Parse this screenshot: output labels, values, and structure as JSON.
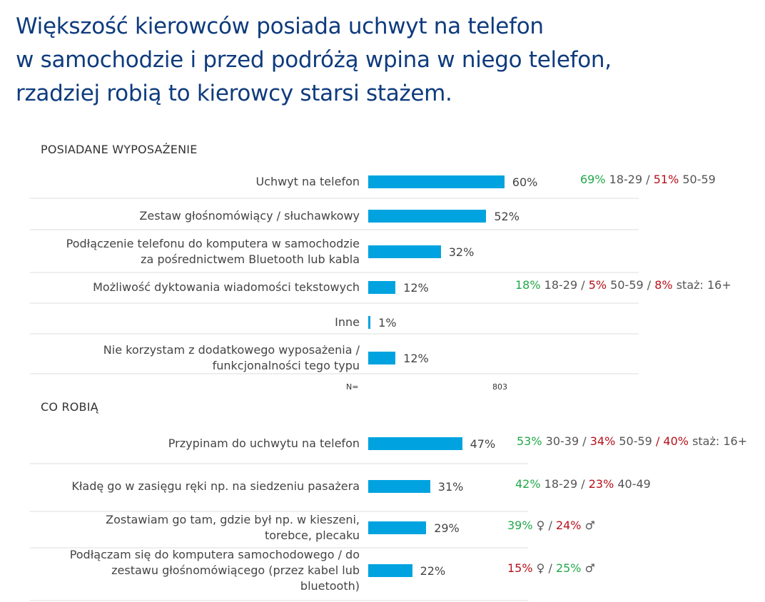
{
  "title_lines": [
    "Większość kierowców posiada uchwyt na telefon",
    "w samochodzie i przed podróżą wpina w niego telefon,",
    "rzadziej robią to kierowcy starsi stażem."
  ],
  "colors": {
    "bar": "#00a3e0",
    "title": "#0e3b7d",
    "green": "#22a84a",
    "red": "#b5121b",
    "gray": "#555555"
  },
  "chart_data": [
    {
      "type": "bar",
      "orientation": "horizontal",
      "title": "POSIADANE WYPOSAŻENIE",
      "n_label": "N=",
      "n_value": "803",
      "categories": [
        "Uchwyt na telefon",
        "Zestaw głośnomówiący / słuchawkowy",
        "Podłączenie telefonu do komputera w samochodzie\nza pośrednictwem Bluetooth lub kabla",
        "Możliwość dyktowania wiadomości tekstowych",
        "Inne",
        "Nie korzystam z dodatkowego wyposażenia /\nfunkcjonalności tego typu"
      ],
      "values": [
        60,
        52,
        32,
        12,
        1,
        12
      ],
      "value_labels": [
        "60%",
        "52%",
        "32%",
        "12%",
        "1%",
        "12%"
      ],
      "annotations": [
        [
          {
            "t": "69%",
            "c": "green"
          },
          {
            "t": " 18-29 / ",
            "c": "gray"
          },
          {
            "t": "51%",
            "c": "red"
          },
          {
            "t": " 50-59",
            "c": "gray"
          }
        ],
        [],
        [],
        [
          {
            "t": "18%",
            "c": "green"
          },
          {
            "t": " 18-29 / ",
            "c": "gray"
          },
          {
            "t": "5%",
            "c": "red"
          },
          {
            "t": " 50-59 / ",
            "c": "gray"
          },
          {
            "t": "8%",
            "c": "red"
          },
          {
            "t": " staż: 16+",
            "c": "gray"
          }
        ],
        [],
        []
      ]
    },
    {
      "type": "bar",
      "orientation": "horizontal",
      "title": "CO ROBIĄ",
      "categories": [
        "Przypinam do uchwytu na telefon",
        "Kładę go w zasięgu ręki np. na siedzeniu pasażera",
        "Zostawiam go tam, gdzie był np. w kieszeni,\ntorebce, plecaku",
        "Podłączam się do komputera samochodowego / do\nzestawu głośnomówiącego (przez kabel lub\nbluetooth)"
      ],
      "values": [
        47,
        31,
        29,
        22
      ],
      "value_labels": [
        "47%",
        "31%",
        "29%",
        "22%"
      ],
      "annotations": [
        [
          {
            "t": "53%",
            "c": "green"
          },
          {
            "t": " 30-39 / ",
            "c": "gray"
          },
          {
            "t": "34%",
            "c": "red"
          },
          {
            "t": " 50-59 ",
            "c": "gray"
          },
          {
            "t": "/ 40%",
            "c": "red"
          },
          {
            "t": " staż: 16+",
            "c": "gray"
          }
        ],
        [
          {
            "t": "42%",
            "c": "green"
          },
          {
            "t": " 18-29 / ",
            "c": "gray"
          },
          {
            "t": "23%",
            "c": "red"
          },
          {
            "t": " 40-49",
            "c": "gray"
          }
        ],
        [
          {
            "t": "39%",
            "c": "green"
          },
          {
            "t": " ♀ / ",
            "c": "gray"
          },
          {
            "t": "24%",
            "c": "red"
          },
          {
            "t": " ♂",
            "c": "gray"
          }
        ],
        [
          {
            "t": "15%",
            "c": "red"
          },
          {
            "t": " ♀ / ",
            "c": "gray"
          },
          {
            "t": "25%",
            "c": "green"
          },
          {
            "t": " ♂",
            "c": "gray"
          }
        ]
      ]
    }
  ]
}
